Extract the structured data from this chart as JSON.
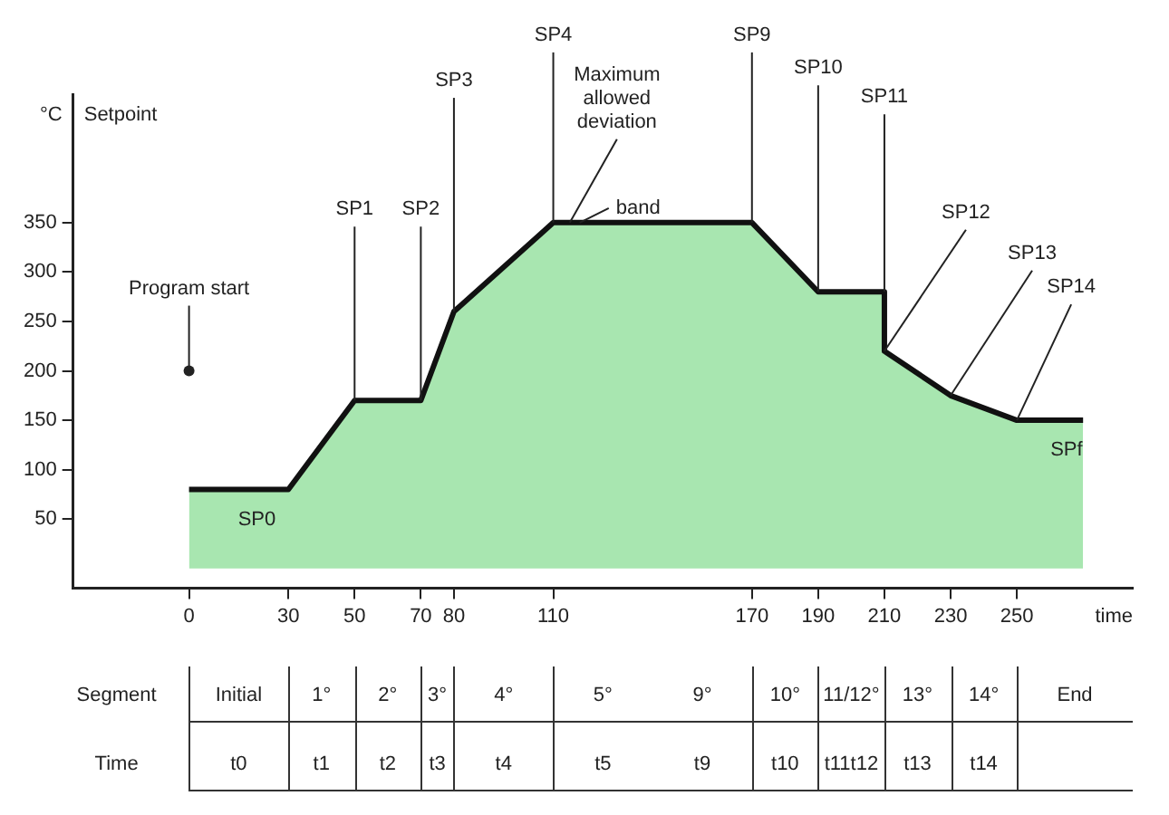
{
  "chart_data": {
    "type": "area",
    "xlabel": "time",
    "ylabel": "°C Setpoint",
    "x": [
      0,
      30,
      50,
      70,
      80,
      110,
      170,
      190,
      210,
      210,
      230,
      250,
      270
    ],
    "series": [
      {
        "color": "#a8e6b0",
        "values": [
          80,
          80,
          170,
          170,
          260,
          350,
          350,
          280,
          280,
          220,
          175,
          150,
          150
        ]
      }
    ],
    "xlim": [
      -35,
      285
    ],
    "ylim": [
      -20,
      480
    ],
    "xticks": [
      0,
      30,
      50,
      70,
      80,
      110,
      170,
      190,
      210,
      230,
      250
    ],
    "yticks": [
      50,
      100,
      150,
      200,
      250,
      300,
      350
    ],
    "grid": false,
    "legend": false,
    "annotations": [
      {
        "text": "Program start",
        "x": 0,
        "y": 200
      },
      {
        "text": "SP0",
        "x": 15,
        "y": 80
      },
      {
        "text": "SP1",
        "x": 50,
        "y": 170
      },
      {
        "text": "SP2",
        "x": 70,
        "y": 170
      },
      {
        "text": "SP3",
        "x": 80,
        "y": 260
      },
      {
        "text": "SP4",
        "x": 110,
        "y": 350
      },
      {
        "text": "Maximum allowed deviation",
        "x": 115,
        "y": 350
      },
      {
        "text": "band",
        "x": 118,
        "y": 350
      },
      {
        "text": "SP9",
        "x": 170,
        "y": 350
      },
      {
        "text": "SP10",
        "x": 190,
        "y": 280
      },
      {
        "text": "SP11",
        "x": 210,
        "y": 280
      },
      {
        "text": "SP12",
        "x": 210,
        "y": 220
      },
      {
        "text": "SP13",
        "x": 230,
        "y": 175
      },
      {
        "text": "SP14",
        "x": 250,
        "y": 150
      },
      {
        "text": "SPf",
        "x": 265,
        "y": 150
      },
      "Segment",
      "Initial",
      "1°",
      "2°",
      "3°",
      "4°",
      "5°",
      "9°",
      "10°",
      "11/12°",
      "13°",
      "14°",
      "End",
      "Time",
      "t0",
      "t1",
      "t2",
      "t3",
      "t4",
      "t5",
      "t9",
      "t10",
      "t11t12",
      "t13",
      "t14"
    ]
  }
}
